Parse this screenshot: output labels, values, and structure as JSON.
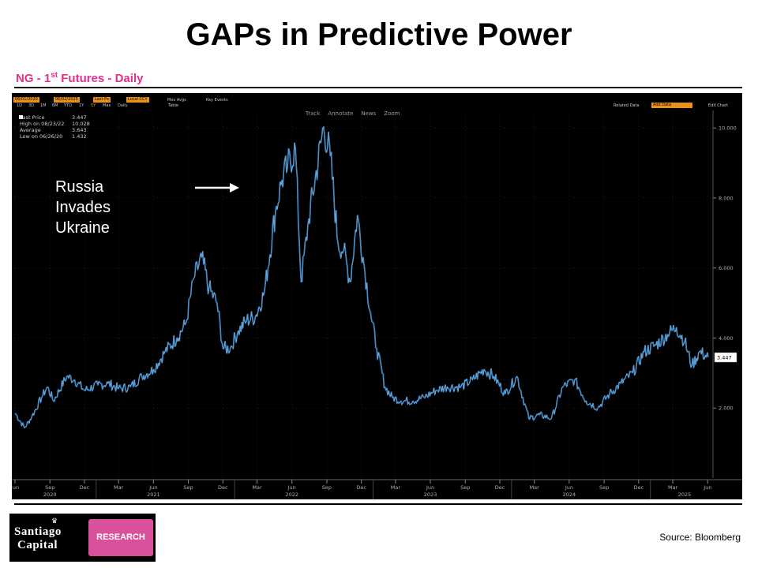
{
  "title": "GAPs in Predictive Power",
  "subtitle": {
    "prefix": "NG - 1",
    "sup": "st",
    "suffix": " Futures - Daily"
  },
  "toolbar": {
    "date_from": "06/01/2020",
    "date_to": "06/02/2025",
    "field": "Last Px",
    "currency": "Local CCY",
    "mov_avgs": "Mov Avgs",
    "key_events": "Key Events",
    "ranges": [
      "1D",
      "3D",
      "1M",
      "6M",
      "YTD",
      "1Y",
      "5Y",
      "Max",
      "Daily"
    ],
    "table": "Table",
    "related": "Related Data",
    "add_data": "Add Data",
    "edit_chart": "Edit Chart"
  },
  "tools": [
    "Track",
    "Annotate",
    "News",
    "Zoom"
  ],
  "legend": [
    {
      "label": "Last Price",
      "value": "3.447"
    },
    {
      "label": "High on 08/23/22",
      "value": "10.028"
    },
    {
      "label": "Average",
      "value": "3.643"
    },
    {
      "label": "Low on 06/26/20",
      "value": "1.432"
    }
  ],
  "annotation": {
    "lines": [
      "Russia",
      "Invades",
      "Ukraine"
    ]
  },
  "colors": {
    "line": "#3a8fd8",
    "line_highlight": "#cfe0ee",
    "background": "#000000",
    "accent_pink": "#e3308a",
    "last_label": "#ffffff"
  },
  "chart_data": {
    "type": "line",
    "x_unit": "date",
    "ylim": [
      0,
      10.5
    ],
    "y_ticks": [
      "2.000",
      "4.000",
      "6.000",
      "8.000",
      "10.000"
    ],
    "y_tick_values": [
      2,
      4,
      6,
      8,
      10
    ],
    "last_value_label": "3.447",
    "x_month_ticks": [
      "Jun",
      "Sep",
      "Dec",
      "Mar",
      "Jun",
      "Sep",
      "Dec",
      "Mar",
      "Jun",
      "Sep",
      "Dec",
      "Mar",
      "Jun",
      "Sep",
      "Dec",
      "Mar",
      "Jun",
      "Sep",
      "Dec",
      "Mar",
      "Jun"
    ],
    "x_month_dates": [
      "2020-06",
      "2020-09",
      "2020-12",
      "2021-03",
      "2021-06",
      "2021-09",
      "2021-12",
      "2022-03",
      "2022-06",
      "2022-09",
      "2022-12",
      "2023-03",
      "2023-06",
      "2023-09",
      "2023-12",
      "2024-03",
      "2024-06",
      "2024-09",
      "2024-12",
      "2025-03",
      "2025-06"
    ],
    "x_year_ticks": [
      "2020",
      "2021",
      "2022",
      "2023",
      "2024",
      "2025"
    ],
    "x_year_dates": [
      "2020-09",
      "2021-06",
      "2022-06",
      "2023-06",
      "2024-06",
      "2025-04"
    ],
    "series": [
      {
        "x": [
          "2020-06-01",
          "2020-06-26",
          "2020-07-15",
          "2020-08-10",
          "2020-08-25",
          "2020-09-10",
          "2020-10-15",
          "2020-11-05",
          "2020-12-01",
          "2021-01-05",
          "2021-02-01",
          "2021-03-01",
          "2021-04-01",
          "2021-05-01",
          "2021-06-01",
          "2021-07-01",
          "2021-08-01",
          "2021-08-25",
          "2021-09-15",
          "2021-10-06",
          "2021-10-25",
          "2021-11-15",
          "2021-12-01",
          "2021-12-20",
          "2022-01-10",
          "2022-02-01",
          "2022-02-24",
          "2022-03-20",
          "2022-04-18",
          "2022-05-05",
          "2022-05-20",
          "2022-06-10",
          "2022-06-25",
          "2022-07-15",
          "2022-08-23",
          "2022-09-10",
          "2022-09-30",
          "2022-10-15",
          "2022-11-01",
          "2022-11-20",
          "2022-12-05",
          "2022-12-25",
          "2023-01-10",
          "2023-02-01",
          "2023-02-20",
          "2023-03-15",
          "2023-04-15",
          "2023-05-15",
          "2023-06-15",
          "2023-07-15",
          "2023-08-20",
          "2023-09-20",
          "2023-10-20",
          "2023-11-15",
          "2023-12-15",
          "2024-01-15",
          "2024-02-15",
          "2024-03-15",
          "2024-04-15",
          "2024-05-15",
          "2024-06-15",
          "2024-07-15",
          "2024-08-15",
          "2024-09-15",
          "2024-10-15",
          "2024-11-15",
          "2024-12-15",
          "2025-01-15",
          "2025-02-15",
          "2025-03-10",
          "2025-04-01",
          "2025-04-20",
          "2025-05-10",
          "2025-06-02"
        ],
        "y": [
          1.85,
          1.43,
          1.75,
          2.3,
          2.6,
          2.2,
          2.9,
          2.8,
          2.5,
          2.65,
          2.7,
          2.55,
          2.6,
          2.9,
          3.1,
          3.6,
          4.0,
          4.4,
          5.7,
          6.3,
          5.4,
          5.0,
          3.7,
          3.7,
          4.2,
          4.5,
          4.6,
          5.3,
          7.6,
          8.5,
          8.9,
          9.4,
          5.6,
          7.4,
          10.03,
          9.2,
          6.7,
          6.5,
          5.6,
          7.5,
          6.3,
          4.7,
          3.7,
          2.6,
          2.3,
          2.2,
          2.2,
          2.3,
          2.5,
          2.6,
          2.6,
          2.8,
          3.1,
          2.9,
          2.4,
          2.9,
          1.7,
          1.8,
          1.7,
          2.6,
          2.8,
          2.2,
          2.0,
          2.4,
          2.7,
          3.0,
          3.6,
          3.8,
          4.1,
          4.3,
          3.9,
          3.2,
          3.6,
          3.447
        ]
      }
    ]
  },
  "logo": {
    "line1": "Santiago",
    "line2": "Capital",
    "research": "RESEARCH"
  },
  "source": "Source: Bloomberg"
}
